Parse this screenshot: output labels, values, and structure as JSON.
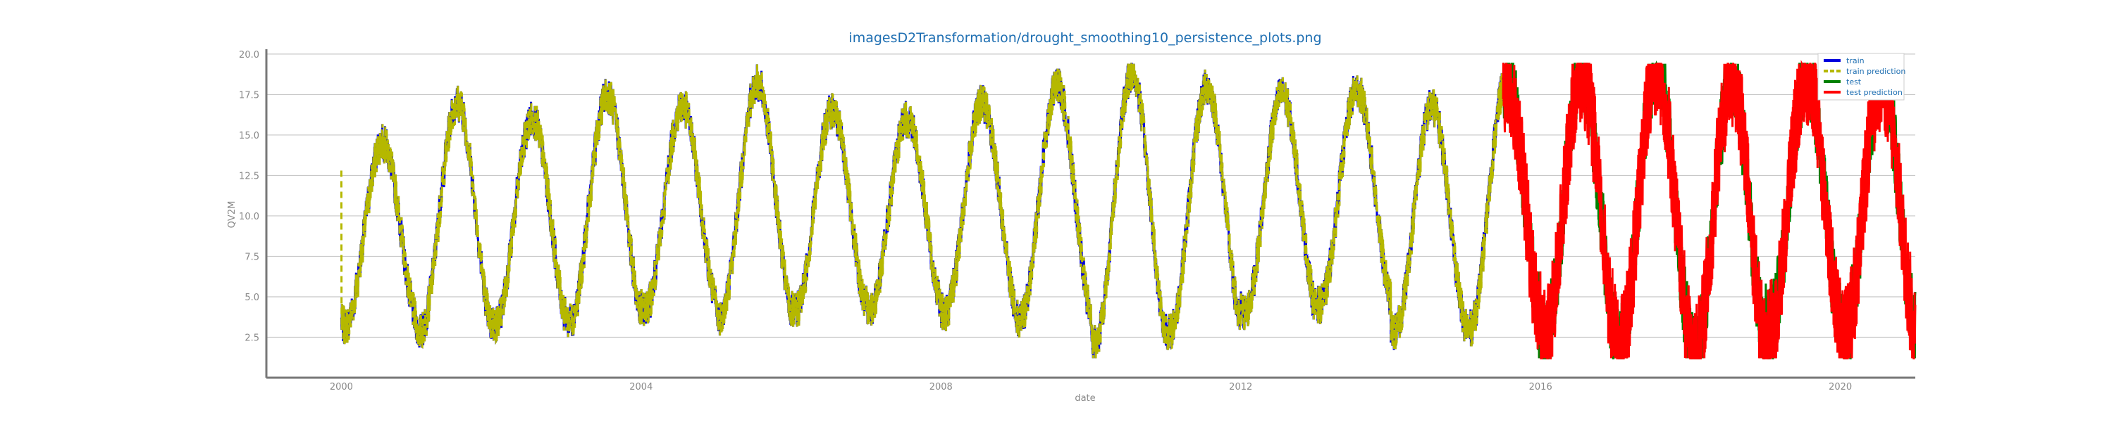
{
  "chart_data": {
    "type": "line",
    "title": "imagesD2Transformation/drought_smoothing10_persistence_plots.png",
    "xlabel": "date",
    "ylabel": "QV2M",
    "x_ticks": [
      "2000",
      "2004",
      "2008",
      "2012",
      "2016",
      "2020"
    ],
    "y_ticks": [
      "2.5",
      "5.0",
      "7.5",
      "10.0",
      "12.5",
      "15.0",
      "17.5",
      "20.0"
    ],
    "xlim": [
      1999.0,
      2021.0
    ],
    "ylim": [
      0.0,
      20.3
    ],
    "grid": "horizontal",
    "legend_position": "top-right",
    "train_period": [
      2000.0,
      2015.5
    ],
    "test_period": [
      2015.5,
      2021.0
    ],
    "seasonal_pattern": {
      "peak_month": "July",
      "annual_peak_values": [
        {
          "year": 2000,
          "value": 14.5
        },
        {
          "year": 2001,
          "value": 17.0
        },
        {
          "year": 2002,
          "value": 16.0
        },
        {
          "year": 2003,
          "value": 17.5
        },
        {
          "year": 2004,
          "value": 16.8
        },
        {
          "year": 2005,
          "value": 18.2
        },
        {
          "year": 2006,
          "value": 16.5
        },
        {
          "year": 2007,
          "value": 16.0
        },
        {
          "year": 2008,
          "value": 17.0
        },
        {
          "year": 2009,
          "value": 18.0
        },
        {
          "year": 2010,
          "value": 18.8
        },
        {
          "year": 2011,
          "value": 18.0
        },
        {
          "year": 2012,
          "value": 17.5
        },
        {
          "year": 2013,
          "value": 17.8
        },
        {
          "year": 2014,
          "value": 16.8
        },
        {
          "year": 2015,
          "value": 18.5
        },
        {
          "year": 2016,
          "value": 18.8
        },
        {
          "year": 2017,
          "value": 19.2
        },
        {
          "year": 2018,
          "value": 18.5
        },
        {
          "year": 2019,
          "value": 18.8
        },
        {
          "year": 2020,
          "value": 18.5
        }
      ],
      "annual_trough_values": [
        {
          "year": 2000,
          "value": 3.2
        },
        {
          "year": 2001,
          "value": 2.8
        },
        {
          "year": 2002,
          "value": 3.3
        },
        {
          "year": 2003,
          "value": 3.5
        },
        {
          "year": 2004,
          "value": 4.2
        },
        {
          "year": 2005,
          "value": 3.8
        },
        {
          "year": 2006,
          "value": 4.0
        },
        {
          "year": 2007,
          "value": 4.3
        },
        {
          "year": 2008,
          "value": 4.0
        },
        {
          "year": 2009,
          "value": 3.5
        },
        {
          "year": 2010,
          "value": 2.2
        },
        {
          "year": 2011,
          "value": 2.8
        },
        {
          "year": 2012,
          "value": 4.0
        },
        {
          "year": 2013,
          "value": 4.5
        },
        {
          "year": 2014,
          "value": 2.8
        },
        {
          "year": 2015,
          "value": 3.0
        },
        {
          "year": 2016,
          "value": 2.2
        },
        {
          "year": 2017,
          "value": 1.8
        },
        {
          "year": 2018,
          "value": 1.2
        },
        {
          "year": 2019,
          "value": 2.8
        },
        {
          "year": 2020,
          "value": 2.5
        }
      ],
      "start_value_2000": 12.8
    },
    "series": [
      {
        "name": "train",
        "color": "#0000dd",
        "style": "solid"
      },
      {
        "name": "train prediction",
        "color": "#b5b800",
        "style": "dashed"
      },
      {
        "name": "test",
        "color": "#008000",
        "style": "solid"
      },
      {
        "name": "test prediction",
        "color": "#ff0000",
        "style": "solid"
      }
    ]
  }
}
